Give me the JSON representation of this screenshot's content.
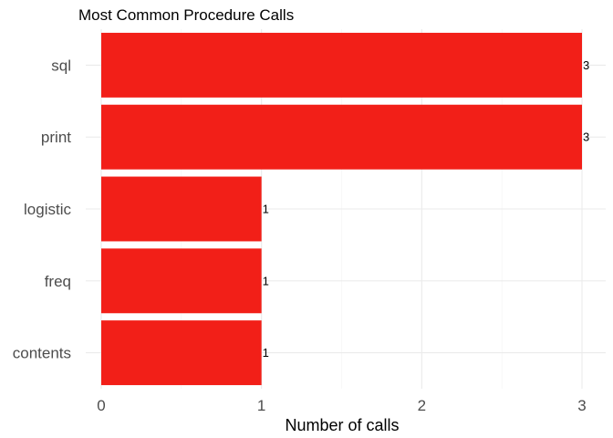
{
  "chart_data": {
    "type": "bar",
    "orientation": "horizontal",
    "title": "Most Common Procedure Calls",
    "xlabel": "Number of calls",
    "ylabel": "",
    "categories": [
      "sql",
      "print",
      "logistic",
      "freq",
      "contents"
    ],
    "values": [
      3,
      3,
      1,
      1,
      1
    ],
    "data_labels": [
      "3",
      "3",
      "1",
      "1",
      "1"
    ],
    "xlim": [
      0,
      3
    ],
    "x_ticks": [
      0,
      1,
      2,
      3
    ],
    "x_tick_labels": [
      "0",
      "1",
      "2",
      "3"
    ],
    "bar_color": "#f21f18",
    "grid": true,
    "legend": "none"
  }
}
